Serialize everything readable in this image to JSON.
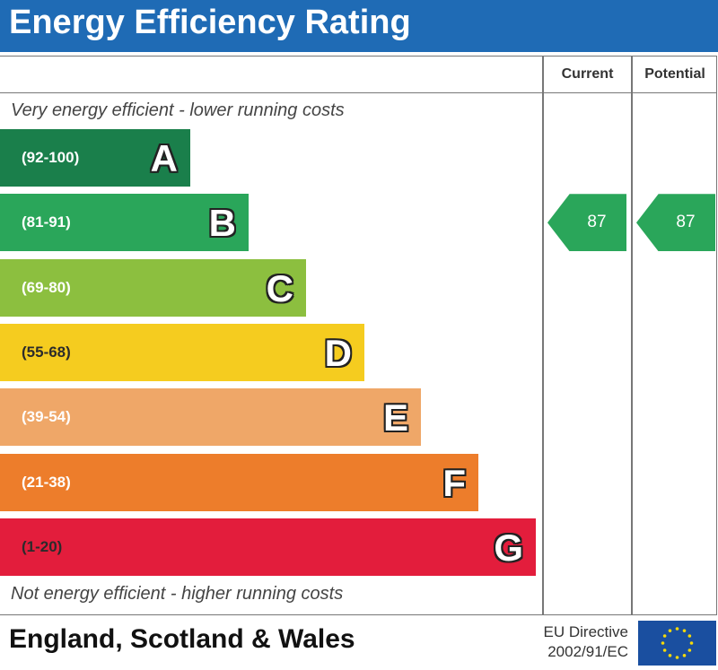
{
  "title": "Energy Efficiency Rating",
  "columns": {
    "current": "Current",
    "potential": "Potential"
  },
  "top_note": "Very energy efficient - lower running costs",
  "bottom_note": "Not energy efficient - higher running costs",
  "footer": {
    "region": "England, Scotland & Wales",
    "directive_line1": "EU Directive",
    "directive_line2": "2002/91/EC"
  },
  "colors": {
    "header": "#1f6bb5",
    "eu_flag": "#1a4fa0",
    "eu_stars": "#f5d90a"
  },
  "chart_data": {
    "type": "bar",
    "bands": [
      {
        "letter": "A",
        "range": "(92-100)",
        "color": "#1a7f4b"
      },
      {
        "letter": "B",
        "range": "(81-91)",
        "color": "#2aa65a"
      },
      {
        "letter": "C",
        "range": "(69-80)",
        "color": "#8cbf3f"
      },
      {
        "letter": "D",
        "range": "(55-68)",
        "color": "#f5cc1f"
      },
      {
        "letter": "E",
        "range": "(39-54)",
        "color": "#efa768"
      },
      {
        "letter": "F",
        "range": "(21-38)",
        "color": "#ed7d2b"
      },
      {
        "letter": "G",
        "range": "(1-20)",
        "color": "#e31d3c"
      }
    ],
    "current": {
      "value": 87,
      "band": "B"
    },
    "potential": {
      "value": 87,
      "band": "B"
    }
  }
}
